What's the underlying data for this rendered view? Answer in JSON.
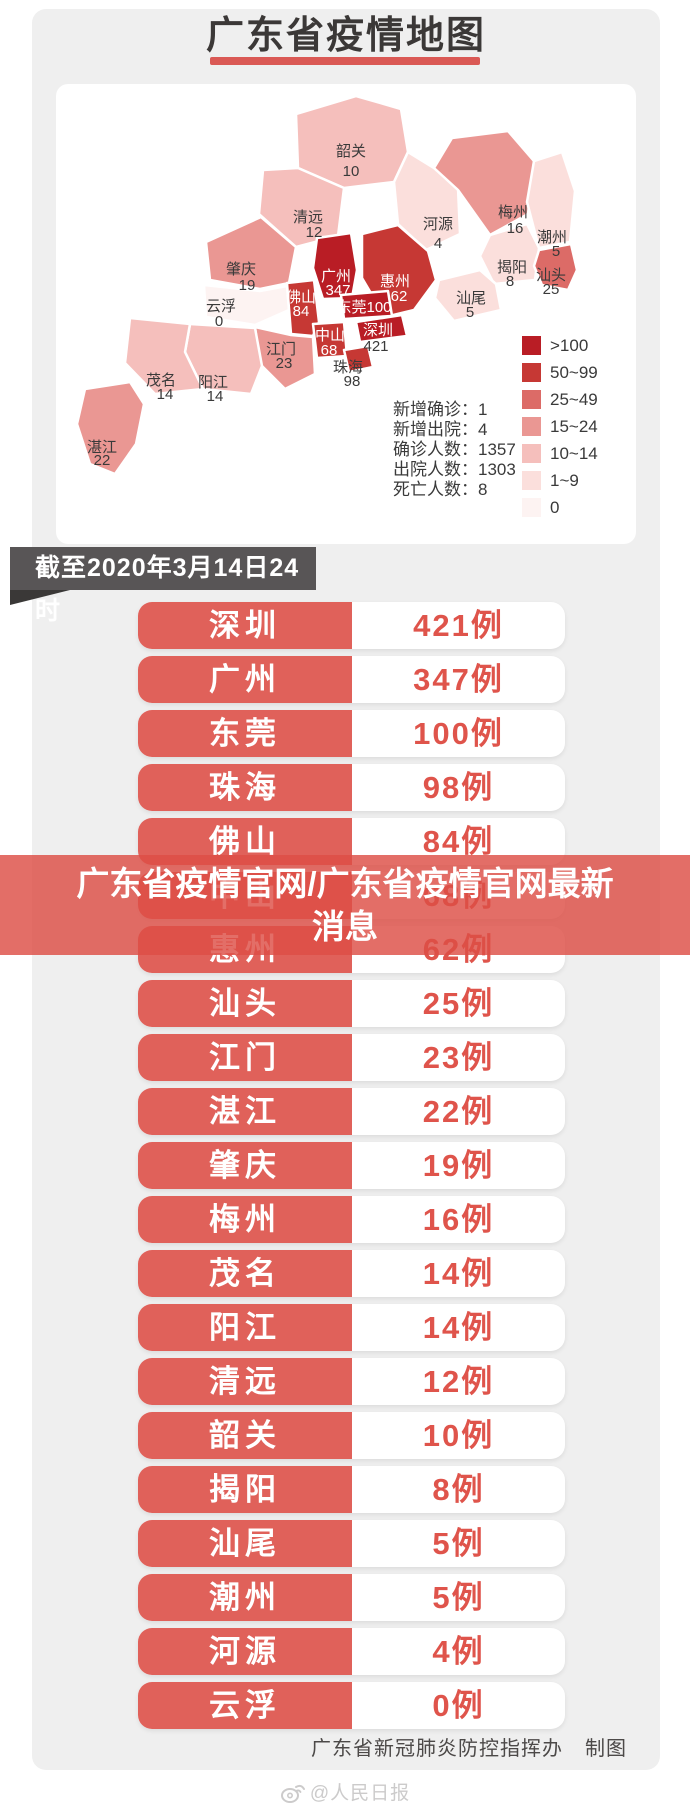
{
  "page": {
    "title": "广东省疫情地图",
    "date_banner": "截至2020年3月14日24时",
    "footer_credit": "广东省新冠肺炎防控指挥办",
    "footer_credit2": "制图",
    "watermark": "@人民日报",
    "accent_red": "#e0615a",
    "count_red": "#df544b",
    "title_underline_red": "#da5955",
    "ribbon_gray": "#585556",
    "background_gray": "#efefef"
  },
  "map": {
    "stats": [
      {
        "label": "新增确诊",
        "value": "1"
      },
      {
        "label": "新增出院",
        "value": "4"
      },
      {
        "label": "确诊人数",
        "value": "1357"
      },
      {
        "label": "出院人数",
        "value": "1303"
      },
      {
        "label": "死亡人数",
        "value": "8"
      }
    ],
    "stats_separator": "：",
    "legend": [
      {
        "label": ">100",
        "color": "#b91d25"
      },
      {
        "label": "50~99",
        "color": "#c63834"
      },
      {
        "label": "25~49",
        "color": "#dc6b67"
      },
      {
        "label": "15~24",
        "color": "#ea9793"
      },
      {
        "label": "10~14",
        "color": "#f5bfbc"
      },
      {
        "label": "1~9",
        "color": "#fbdfdc"
      },
      {
        "label": "0",
        "color": "#fdf3f2"
      }
    ],
    "regions": [
      {
        "name": "韶关",
        "value": "10",
        "bucket": "10~14",
        "label_style": "dark"
      },
      {
        "name": "清远",
        "value": "12",
        "bucket": "10~14",
        "label_style": "dark"
      },
      {
        "name": "河源",
        "value": "4",
        "bucket": "1~9",
        "label_style": "dark"
      },
      {
        "name": "梅州",
        "value": "16",
        "bucket": "15~24",
        "label_style": "dark"
      },
      {
        "name": "潮州",
        "value": "5",
        "bucket": "1~9",
        "label_style": "dark"
      },
      {
        "name": "揭阳",
        "value": "8",
        "bucket": "1~9",
        "label_style": "dark"
      },
      {
        "name": "汕头",
        "value": "25",
        "bucket": "25~49",
        "label_style": "dark"
      },
      {
        "name": "汕尾",
        "value": "5",
        "bucket": "1~9",
        "label_style": "dark"
      },
      {
        "name": "惠州",
        "value": "62",
        "bucket": "50~99",
        "label_style": "light"
      },
      {
        "name": "肇庆",
        "value": "19",
        "bucket": "15~24",
        "label_style": "dark"
      },
      {
        "name": "云浮",
        "value": "0",
        "bucket": "0",
        "label_style": "dark"
      },
      {
        "name": "广州",
        "value": "347",
        "bucket": ">100",
        "label_style": "light"
      },
      {
        "name": "佛山",
        "value": "84",
        "bucket": "50~99",
        "label_style": "light"
      },
      {
        "name": "东莞",
        "value": "100",
        "bucket": ">100",
        "label_style": "light",
        "inline": true
      },
      {
        "name": "深圳",
        "value": "421",
        "bucket": ">100",
        "label_style": "mixed"
      },
      {
        "name": "中山",
        "value": "68",
        "bucket": "50~99",
        "label_style": "light"
      },
      {
        "name": "珠海",
        "value": "98",
        "bucket": "50~99",
        "label_style": "dark"
      },
      {
        "name": "江门",
        "value": "23",
        "bucket": "15~24",
        "label_style": "dark"
      },
      {
        "name": "阳江",
        "value": "14",
        "bucket": "10~14",
        "label_style": "dark"
      },
      {
        "name": "茂名",
        "value": "14",
        "bucket": "10~14",
        "label_style": "dark"
      },
      {
        "name": "湛江",
        "value": "22",
        "bucket": "15~24",
        "label_style": "dark"
      }
    ]
  },
  "overlay": {
    "line1": "广东省疫情官网/广东省疫情官网最新",
    "line2": "消息"
  },
  "table": {
    "rows": [
      {
        "city": "深圳",
        "count": "421例"
      },
      {
        "city": "广州",
        "count": "347例"
      },
      {
        "city": "东莞",
        "count": "100例"
      },
      {
        "city": "珠海",
        "count": "98例"
      },
      {
        "city": "佛山",
        "count": "84例"
      },
      {
        "city": "中山",
        "count": "68例"
      },
      {
        "city": "惠州",
        "count": "62例"
      },
      {
        "city": "汕头",
        "count": "25例"
      },
      {
        "city": "江门",
        "count": "23例"
      },
      {
        "city": "湛江",
        "count": "22例"
      },
      {
        "city": "肇庆",
        "count": "19例"
      },
      {
        "city": "梅州",
        "count": "16例"
      },
      {
        "city": "茂名",
        "count": "14例"
      },
      {
        "city": "阳江",
        "count": "14例"
      },
      {
        "city": "清远",
        "count": "12例"
      },
      {
        "city": "韶关",
        "count": "10例"
      },
      {
        "city": "揭阳",
        "count": "8例"
      },
      {
        "city": "汕尾",
        "count": "5例"
      },
      {
        "city": "潮州",
        "count": "5例"
      },
      {
        "city": "河源",
        "count": "4例"
      },
      {
        "city": "云浮",
        "count": "0例"
      }
    ]
  },
  "chart_data": {
    "type": "heatmap",
    "subtype": "choropleth-map",
    "title": "广东省疫情地图",
    "as_of": "截至2020年3月14日24时",
    "categories": [
      "深圳",
      "广州",
      "东莞",
      "珠海",
      "佛山",
      "中山",
      "惠州",
      "汕头",
      "江门",
      "湛江",
      "肇庆",
      "梅州",
      "茂名",
      "阳江",
      "清远",
      "韶关",
      "揭阳",
      "汕尾",
      "潮州",
      "河源",
      "云浮"
    ],
    "values": [
      421,
      347,
      100,
      98,
      84,
      68,
      62,
      25,
      23,
      22,
      19,
      16,
      14,
      14,
      12,
      10,
      8,
      5,
      5,
      4,
      0
    ],
    "legend_buckets": [
      ">100",
      "50~99",
      "25~49",
      "15~24",
      "10~14",
      "1~9",
      "0"
    ],
    "totals": {
      "新增确诊": 1,
      "新增出院": 4,
      "确诊人数": 1357,
      "出院人数": 1303,
      "死亡人数": 8
    }
  }
}
